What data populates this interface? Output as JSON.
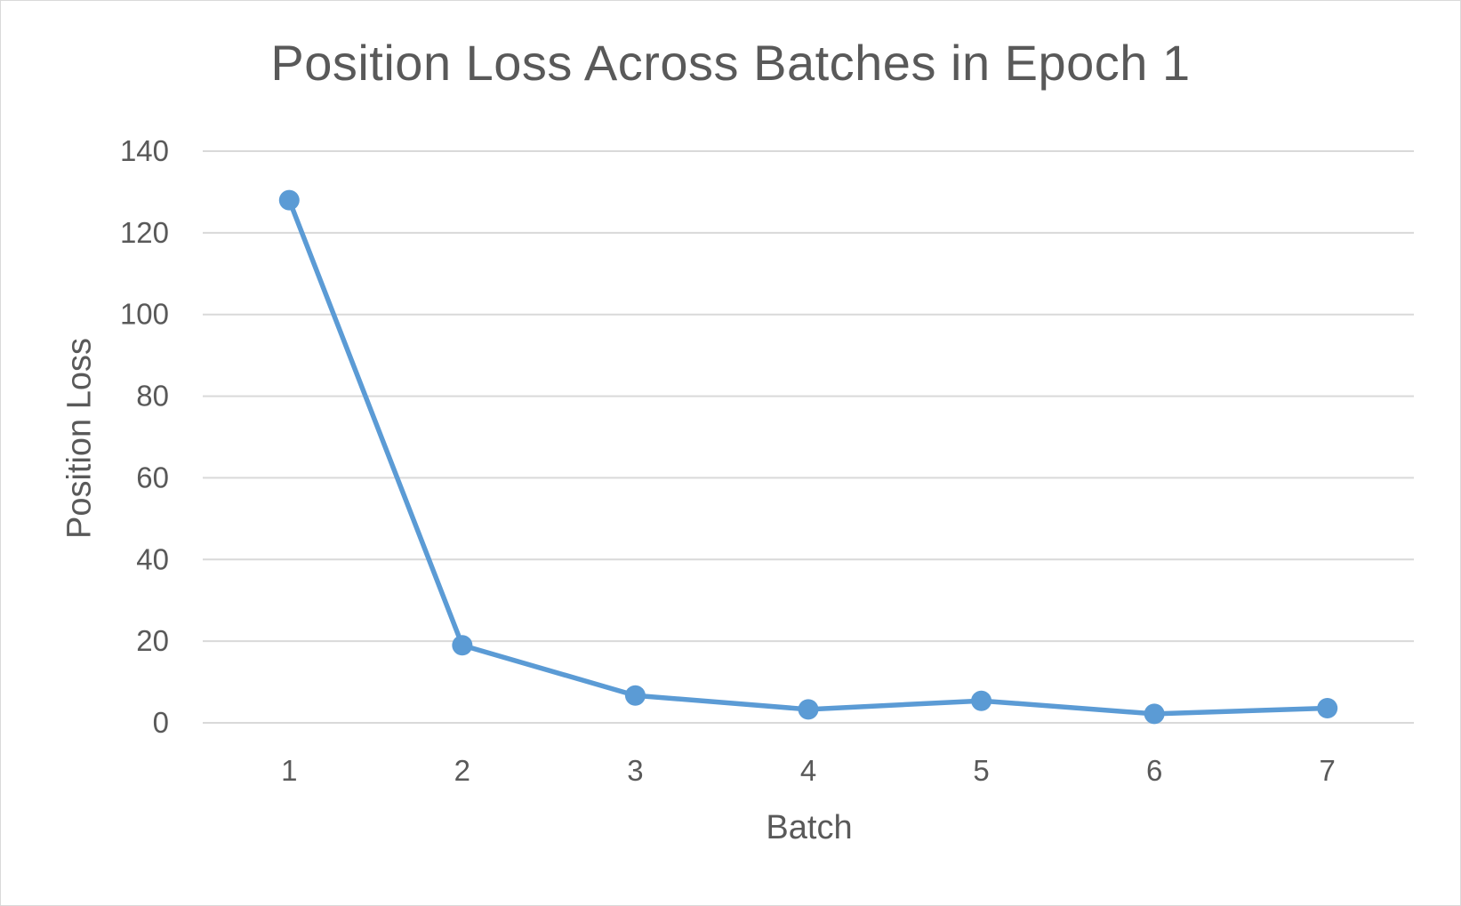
{
  "chart_data": {
    "type": "line",
    "title": "Position Loss Across Batches in Epoch 1",
    "xlabel": "Batch",
    "ylabel": "Position Loss",
    "categories": [
      "1",
      "2",
      "3",
      "4",
      "5",
      "6",
      "7"
    ],
    "series": [
      {
        "values": [
          128,
          19,
          6.7,
          3.3,
          5.4,
          2.2,
          3.6
        ],
        "color": "#5b9bd5"
      }
    ],
    "ylim": [
      0,
      140
    ],
    "yticks": [
      "0",
      "20",
      "40",
      "60",
      "80",
      "100",
      "120",
      "140"
    ],
    "grid": true,
    "legend": "none"
  }
}
